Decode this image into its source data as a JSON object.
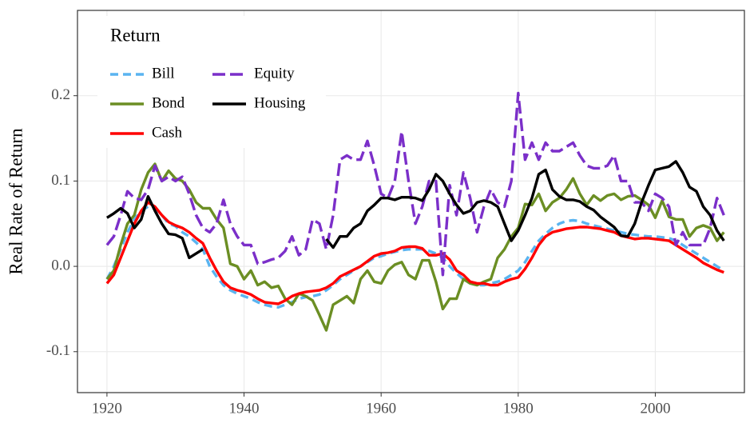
{
  "chart_data": {
    "type": "line",
    "y_label": "Real Rate of Return",
    "legend_title": "Return",
    "legend_position": "top-left",
    "grid": true,
    "xlim": [
      1915.7,
      2013
    ],
    "ylim": [
      -0.148,
      0.3
    ],
    "xticks": [
      1920,
      1940,
      1960,
      1980,
      2000
    ],
    "yticks": [
      -0.1,
      {
        "value": 0,
        "label": "0.0"
      },
      0.1,
      0.2
    ],
    "x": [
      1920,
      1921,
      1922,
      1923,
      1924,
      1925,
      1926,
      1927,
      1928,
      1929,
      1930,
      1931,
      1932,
      1933,
      1934,
      1935,
      1936,
      1937,
      1938,
      1939,
      1940,
      1941,
      1942,
      1943,
      1944,
      1945,
      1946,
      1947,
      1948,
      1949,
      1950,
      1951,
      1952,
      1953,
      1954,
      1955,
      1956,
      1957,
      1958,
      1959,
      1960,
      1961,
      1962,
      1963,
      1964,
      1965,
      1966,
      1967,
      1968,
      1969,
      1970,
      1971,
      1972,
      1973,
      1974,
      1975,
      1976,
      1977,
      1978,
      1979,
      1980,
      1981,
      1982,
      1983,
      1984,
      1985,
      1986,
      1987,
      1988,
      1989,
      1990,
      1991,
      1992,
      1993,
      1994,
      1995,
      1996,
      1997,
      1998,
      1999,
      2000,
      2001,
      2002,
      2003,
      2004,
      2005,
      2006,
      2007,
      2008,
      2009,
      2010
    ],
    "series": [
      {
        "name": "Bill",
        "color": "#5ab4f0",
        "linetype": "dashed",
        "values": [
          -0.015,
          0.0,
          0.02,
          0.04,
          0.055,
          0.065,
          0.07,
          0.068,
          0.06,
          0.05,
          0.047,
          0.04,
          0.035,
          0.028,
          0.02,
          0.0,
          -0.012,
          -0.022,
          -0.028,
          -0.032,
          -0.035,
          -0.038,
          -0.042,
          -0.045,
          -0.047,
          -0.048,
          -0.045,
          -0.042,
          -0.038,
          -0.036,
          -0.035,
          -0.033,
          -0.028,
          -0.022,
          -0.015,
          -0.01,
          -0.005,
          0.0,
          0.005,
          0.01,
          0.012,
          0.015,
          0.017,
          0.019,
          0.02,
          0.02,
          0.02,
          0.018,
          0.015,
          0.01,
          0.0,
          -0.008,
          -0.015,
          -0.02,
          -0.022,
          -0.022,
          -0.02,
          -0.018,
          -0.015,
          -0.01,
          -0.005,
          0.005,
          0.018,
          0.03,
          0.038,
          0.045,
          0.05,
          0.053,
          0.054,
          0.053,
          0.05,
          0.048,
          0.046,
          0.044,
          0.042,
          0.04,
          0.038,
          0.037,
          0.036,
          0.035,
          0.035,
          0.034,
          0.033,
          0.03,
          0.025,
          0.02,
          0.015,
          0.01,
          0.005,
          0.0,
          -0.005
        ]
      },
      {
        "name": "Bond",
        "color": "#6b8e23",
        "linetype": "solid",
        "values": [
          -0.015,
          -0.005,
          0.025,
          0.05,
          0.06,
          0.09,
          0.11,
          0.12,
          0.1,
          0.112,
          0.103,
          0.1,
          0.09,
          0.075,
          0.068,
          0.068,
          0.055,
          0.045,
          0.003,
          0.0,
          -0.015,
          -0.005,
          -0.022,
          -0.018,
          -0.025,
          -0.023,
          -0.038,
          -0.045,
          -0.032,
          -0.035,
          -0.04,
          -0.057,
          -0.075,
          -0.045,
          -0.04,
          -0.035,
          -0.043,
          -0.015,
          -0.005,
          -0.018,
          -0.02,
          -0.005,
          0.002,
          0.005,
          -0.01,
          -0.015,
          0.007,
          0.007,
          -0.018,
          -0.05,
          -0.038,
          -0.038,
          -0.015,
          -0.02,
          -0.022,
          -0.018,
          -0.015,
          0.01,
          0.02,
          0.035,
          0.045,
          0.073,
          0.072,
          0.085,
          0.065,
          0.075,
          0.08,
          0.09,
          0.103,
          0.085,
          0.072,
          0.083,
          0.077,
          0.083,
          0.085,
          0.078,
          0.082,
          0.083,
          0.078,
          0.072,
          0.057,
          0.077,
          0.058,
          0.055,
          0.055,
          0.035,
          0.045,
          0.048,
          0.045,
          0.03,
          0.04
        ]
      },
      {
        "name": "Cash",
        "color": "#ff0000",
        "linetype": "solid",
        "values": [
          -0.02,
          -0.01,
          0.01,
          0.03,
          0.05,
          0.065,
          0.075,
          0.07,
          0.06,
          0.052,
          0.048,
          0.045,
          0.04,
          0.033,
          0.027,
          0.01,
          -0.005,
          -0.018,
          -0.025,
          -0.028,
          -0.03,
          -0.033,
          -0.038,
          -0.042,
          -0.043,
          -0.044,
          -0.04,
          -0.035,
          -0.032,
          -0.03,
          -0.029,
          -0.028,
          -0.025,
          -0.02,
          -0.012,
          -0.008,
          -0.004,
          0.0,
          0.006,
          0.012,
          0.015,
          0.016,
          0.018,
          0.022,
          0.023,
          0.023,
          0.021,
          0.013,
          0.013,
          0.015,
          0.008,
          -0.005,
          -0.01,
          -0.018,
          -0.02,
          -0.02,
          -0.022,
          -0.022,
          -0.018,
          -0.015,
          -0.013,
          -0.003,
          0.01,
          0.025,
          0.035,
          0.04,
          0.042,
          0.044,
          0.045,
          0.046,
          0.046,
          0.045,
          0.044,
          0.042,
          0.04,
          0.036,
          0.034,
          0.032,
          0.033,
          0.033,
          0.032,
          0.031,
          0.03,
          0.025,
          0.02,
          0.015,
          0.01,
          0.004,
          0.0,
          -0.004,
          -0.007
        ]
      },
      {
        "name": "Equity",
        "color": "#7b2fc9",
        "linetype": "longdash",
        "values": [
          0.025,
          0.035,
          0.06,
          0.088,
          0.08,
          0.078,
          0.09,
          0.118,
          0.1,
          0.105,
          0.1,
          0.105,
          0.085,
          0.06,
          0.045,
          0.04,
          0.05,
          0.078,
          0.05,
          0.035,
          0.025,
          0.025,
          0.003,
          0.005,
          0.008,
          0.01,
          0.018,
          0.035,
          0.013,
          0.02,
          0.055,
          0.05,
          0.02,
          0.06,
          0.125,
          0.13,
          0.125,
          0.125,
          0.147,
          0.118,
          0.085,
          0.08,
          0.1,
          0.158,
          0.1,
          0.05,
          0.07,
          0.1,
          0.1,
          -0.01,
          0.095,
          0.06,
          0.11,
          0.08,
          0.04,
          0.07,
          0.09,
          0.075,
          0.07,
          0.1,
          0.203,
          0.125,
          0.145,
          0.125,
          0.145,
          0.135,
          0.135,
          0.14,
          0.145,
          0.13,
          0.118,
          0.115,
          0.115,
          0.118,
          0.13,
          0.1,
          0.1,
          0.075,
          0.075,
          0.065,
          0.085,
          0.08,
          0.07,
          0.025,
          0.04,
          0.025,
          0.025,
          0.025,
          0.045,
          0.08,
          0.06
        ]
      },
      {
        "name": "Housing",
        "color": "#000000",
        "linetype": "solid",
        "values": [
          0.057,
          0.062,
          0.068,
          0.062,
          0.045,
          0.055,
          0.082,
          0.065,
          0.05,
          0.038,
          0.037,
          0.033,
          0.01,
          0.015,
          0.02,
          null,
          null,
          null,
          null,
          null,
          null,
          null,
          null,
          null,
          null,
          null,
          null,
          null,
          null,
          null,
          null,
          null,
          0.032,
          0.022,
          0.035,
          0.035,
          0.045,
          0.05,
          0.065,
          0.072,
          0.08,
          0.08,
          0.078,
          0.081,
          0.081,
          0.08,
          0.077,
          0.09,
          0.108,
          0.1,
          0.085,
          0.072,
          0.062,
          0.065,
          0.075,
          0.077,
          0.075,
          0.07,
          0.05,
          0.03,
          0.042,
          0.06,
          0.08,
          0.108,
          0.113,
          0.09,
          0.082,
          0.078,
          0.078,
          0.076,
          0.07,
          0.066,
          0.058,
          0.052,
          0.046,
          0.036,
          0.035,
          0.05,
          0.075,
          0.095,
          0.113,
          0.115,
          0.117,
          0.123,
          0.11,
          0.093,
          0.088,
          0.07,
          0.06,
          0.042,
          0.03
        ]
      }
    ]
  }
}
